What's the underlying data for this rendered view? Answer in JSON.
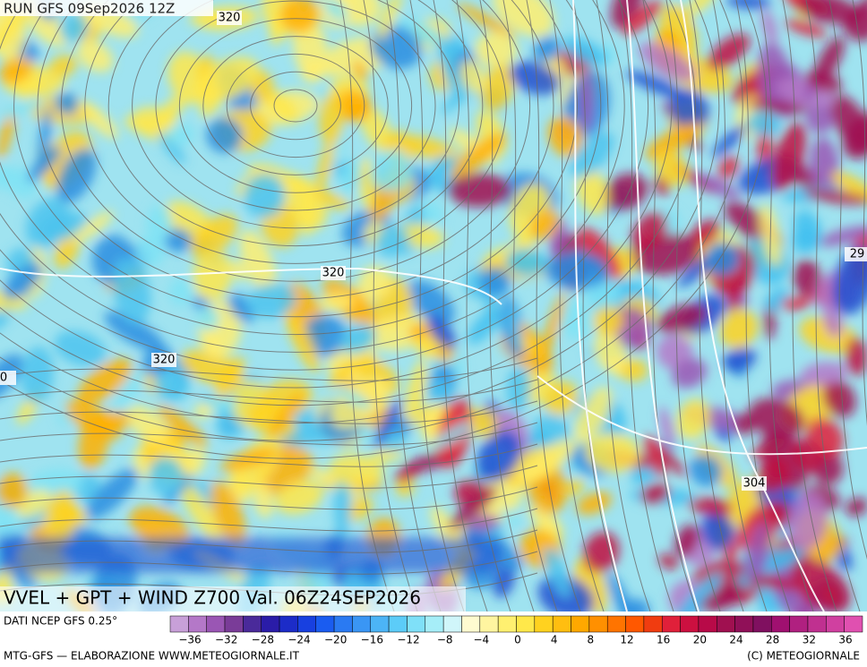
{
  "header": {
    "run": "RUN GFS 09Sep2026 12Z"
  },
  "contour_labels": [
    "320",
    "320",
    "320",
    "29",
    "0",
    "304"
  ],
  "map_title": "VVEL + GPT + WIND Z700 Val. 06Z24SEP2026",
  "legend": {
    "source": "DATI NCEP GFS 0.25°",
    "labels": [
      "−36",
      "−32",
      "−28",
      "−24",
      "−20",
      "−16",
      "−12",
      "−8",
      "−4",
      "0",
      "4",
      "8",
      "12",
      "16",
      "20",
      "24",
      "28",
      "32",
      "36"
    ]
  },
  "footer": {
    "left": "MTG-GFS — ELABORAZIONE WWW.METEOGIORNALE.IT",
    "right": "(C) METEOGIORNALE"
  }
}
